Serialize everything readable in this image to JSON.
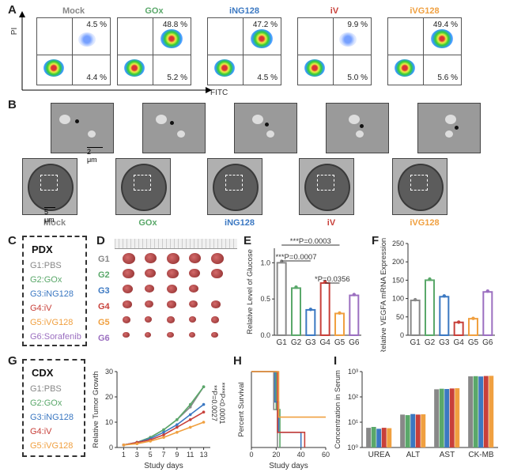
{
  "panels": {
    "A": "A",
    "B": "B",
    "C": "C",
    "D": "D",
    "E": "E",
    "F": "F",
    "G": "G",
    "H": "H",
    "I": "I"
  },
  "flow": {
    "y_axis": "PI",
    "x_axis": "FITC",
    "plots": [
      {
        "label": "Mock",
        "color": "#888888",
        "upper_right": "4.5 %",
        "lower_right": "4.4 %"
      },
      {
        "label": "GOx",
        "color": "#5aa86a",
        "upper_right": "48.8 %",
        "lower_right": "5.2 %"
      },
      {
        "label": "iNG128",
        "color": "#3b78c2",
        "upper_right": "47.2 %",
        "lower_right": "4.5 %"
      },
      {
        "label": "iV",
        "color": "#c8403a",
        "upper_right": "9.9 %",
        "lower_right": "5.0 %"
      },
      {
        "label": "iVG128",
        "color": "#f0a040",
        "upper_right": "49.4 %",
        "lower_right": "5.6 %"
      }
    ]
  },
  "tem": {
    "scale_small": "2 μm",
    "scale_large": "5 μm",
    "labels": [
      {
        "text": "Mock",
        "color": "#888888"
      },
      {
        "text": "GOx",
        "color": "#5aa86a"
      },
      {
        "text": "iNG128",
        "color": "#3b78c2"
      },
      {
        "text": "iV",
        "color": "#c8403a"
      },
      {
        "text": "iVG128",
        "color": "#f0a040"
      }
    ]
  },
  "pdx_legend": {
    "title": "PDX",
    "items": [
      {
        "text": "G1:PBS",
        "color": "#888888"
      },
      {
        "text": "G2:GOx",
        "color": "#5aa86a"
      },
      {
        "text": "G3:iNG128",
        "color": "#3b78c2"
      },
      {
        "text": "G4:iV",
        "color": "#c8403a"
      },
      {
        "text": "G5:iVG128",
        "color": "#f0a040"
      },
      {
        "text": "G6:Sorafenib",
        "color": "#9b6fc0"
      }
    ]
  },
  "tumor_rows": [
    {
      "label": "G1",
      "color": "#888888",
      "count": 5
    },
    {
      "label": "G2",
      "color": "#5aa86a",
      "count": 5
    },
    {
      "label": "G3",
      "color": "#3b78c2",
      "count": 4
    },
    {
      "label": "G4",
      "color": "#c8403a",
      "count": 5
    },
    {
      "label": "G5",
      "color": "#f0a040",
      "count": 5
    },
    {
      "label": "G6",
      "color": "#9b6fc0",
      "count": 5
    }
  ],
  "cdx_legend": {
    "title": "CDX",
    "items": [
      {
        "text": "G1:PBS",
        "color": "#888888"
      },
      {
        "text": "G2:GOx",
        "color": "#5aa86a"
      },
      {
        "text": "G3:iNG128",
        "color": "#3b78c2"
      },
      {
        "text": "G4:iV",
        "color": "#c8403a"
      },
      {
        "text": "G5:iVG128",
        "color": "#f0a040"
      }
    ]
  },
  "chart_data": [
    {
      "id": "E",
      "type": "bar",
      "ylabel": "Relative Level of Glucose",
      "categories": [
        "G1",
        "G2",
        "G3",
        "G4",
        "G5",
        "G6"
      ],
      "colors": [
        "#888888",
        "#5aa86a",
        "#3b78c2",
        "#c8403a",
        "#f0a040",
        "#9b6fc0"
      ],
      "values": [
        1.0,
        0.65,
        0.35,
        0.72,
        0.3,
        0.55
      ],
      "ylim": [
        0,
        1.2
      ],
      "yticks": [
        "0.0",
        "0.5",
        "1.0"
      ],
      "annotations": [
        "***P=0.0003",
        "***P=0.0007",
        "*P=0.0356"
      ]
    },
    {
      "id": "F",
      "type": "bar",
      "ylabel": "Relative VEGFA mRNA Expression (%)",
      "categories": [
        "G1",
        "G2",
        "G3",
        "G4",
        "G5",
        "G6"
      ],
      "colors": [
        "#888888",
        "#5aa86a",
        "#3b78c2",
        "#c8403a",
        "#f0a040",
        "#9b6fc0"
      ],
      "values": [
        95,
        150,
        105,
        35,
        45,
        118
      ],
      "ylim": [
        0,
        250
      ],
      "yticks": [
        "0",
        "50",
        "100",
        "150",
        "200",
        "250"
      ]
    },
    {
      "id": "G",
      "type": "line",
      "ylabel": "Relative Tumor Growth",
      "xlabel": "Study days",
      "x": [
        1,
        3,
        5,
        7,
        9,
        11,
        13
      ],
      "xticks": [
        "1",
        "3",
        "5",
        "7",
        "9",
        "11",
        "13"
      ],
      "yticks": [
        "0",
        "10",
        "20",
        "30"
      ],
      "ylim": [
        0,
        30
      ],
      "series": [
        {
          "values": [
            1,
            2,
            4,
            7,
            11,
            16,
            24
          ],
          "color": "#888888"
        },
        {
          "values": [
            1,
            2,
            4,
            7,
            11,
            17,
            24
          ],
          "color": "#5aa86a"
        },
        {
          "values": [
            1,
            2,
            3.5,
            6,
            9,
            13,
            17
          ],
          "color": "#3b78c2"
        },
        {
          "values": [
            1,
            2,
            3,
            5,
            8,
            11,
            14
          ],
          "color": "#c8403a"
        },
        {
          "values": [
            1,
            1.5,
            2.5,
            4,
            6,
            8,
            10
          ],
          "color": "#f0a040"
        }
      ],
      "annotations": [
        "****P<0.0001",
        "**P=0.0027"
      ]
    },
    {
      "id": "H",
      "type": "line",
      "ylabel": "Percent Survival",
      "xlabel": "Study days",
      "xticks": [
        "0",
        "20",
        "40",
        "60"
      ],
      "xlim": [
        0,
        60
      ],
      "ylim": [
        0,
        100
      ],
      "series": [
        {
          "color": "#888888",
          "steps": [
            [
              0,
              100
            ],
            [
              18,
              100
            ],
            [
              18,
              50
            ],
            [
              21,
              50
            ],
            [
              21,
              0
            ]
          ]
        },
        {
          "color": "#5aa86a",
          "steps": [
            [
              0,
              100
            ],
            [
              20,
              100
            ],
            [
              20,
              50
            ],
            [
              23,
              50
            ],
            [
              23,
              0
            ]
          ]
        },
        {
          "color": "#3b78c2",
          "steps": [
            [
              0,
              100
            ],
            [
              19,
              100
            ],
            [
              19,
              60
            ],
            [
              22,
              60
            ],
            [
              22,
              20
            ],
            [
              40,
              20
            ],
            [
              40,
              0
            ]
          ]
        },
        {
          "color": "#c8403a",
          "steps": [
            [
              0,
              100
            ],
            [
              21,
              100
            ],
            [
              21,
              20
            ],
            [
              43,
              20
            ],
            [
              43,
              0
            ]
          ]
        },
        {
          "color": "#f0a040",
          "steps": [
            [
              0,
              100
            ],
            [
              22,
              100
            ],
            [
              22,
              40
            ],
            [
              60,
              40
            ]
          ]
        }
      ]
    },
    {
      "id": "I",
      "type": "bar",
      "ylabel": "Concentration in Serum",
      "categories": [
        "UREA",
        "ALT",
        "AST",
        "CK-MB"
      ],
      "yticks": [
        "10⁰",
        "10¹",
        "10²",
        "10³"
      ],
      "log_min": 0,
      "log_max": 3,
      "colors": [
        "#888888",
        "#5aa86a",
        "#3b78c2",
        "#c8403a",
        "#f0a040"
      ],
      "groups": [
        [
          6,
          6.5,
          5.5,
          6,
          5.8
        ],
        [
          20,
          19,
          21,
          20,
          20.5
        ],
        [
          200,
          210,
          205,
          215,
          220
        ],
        [
          650,
          660,
          640,
          670,
          680
        ]
      ]
    }
  ]
}
